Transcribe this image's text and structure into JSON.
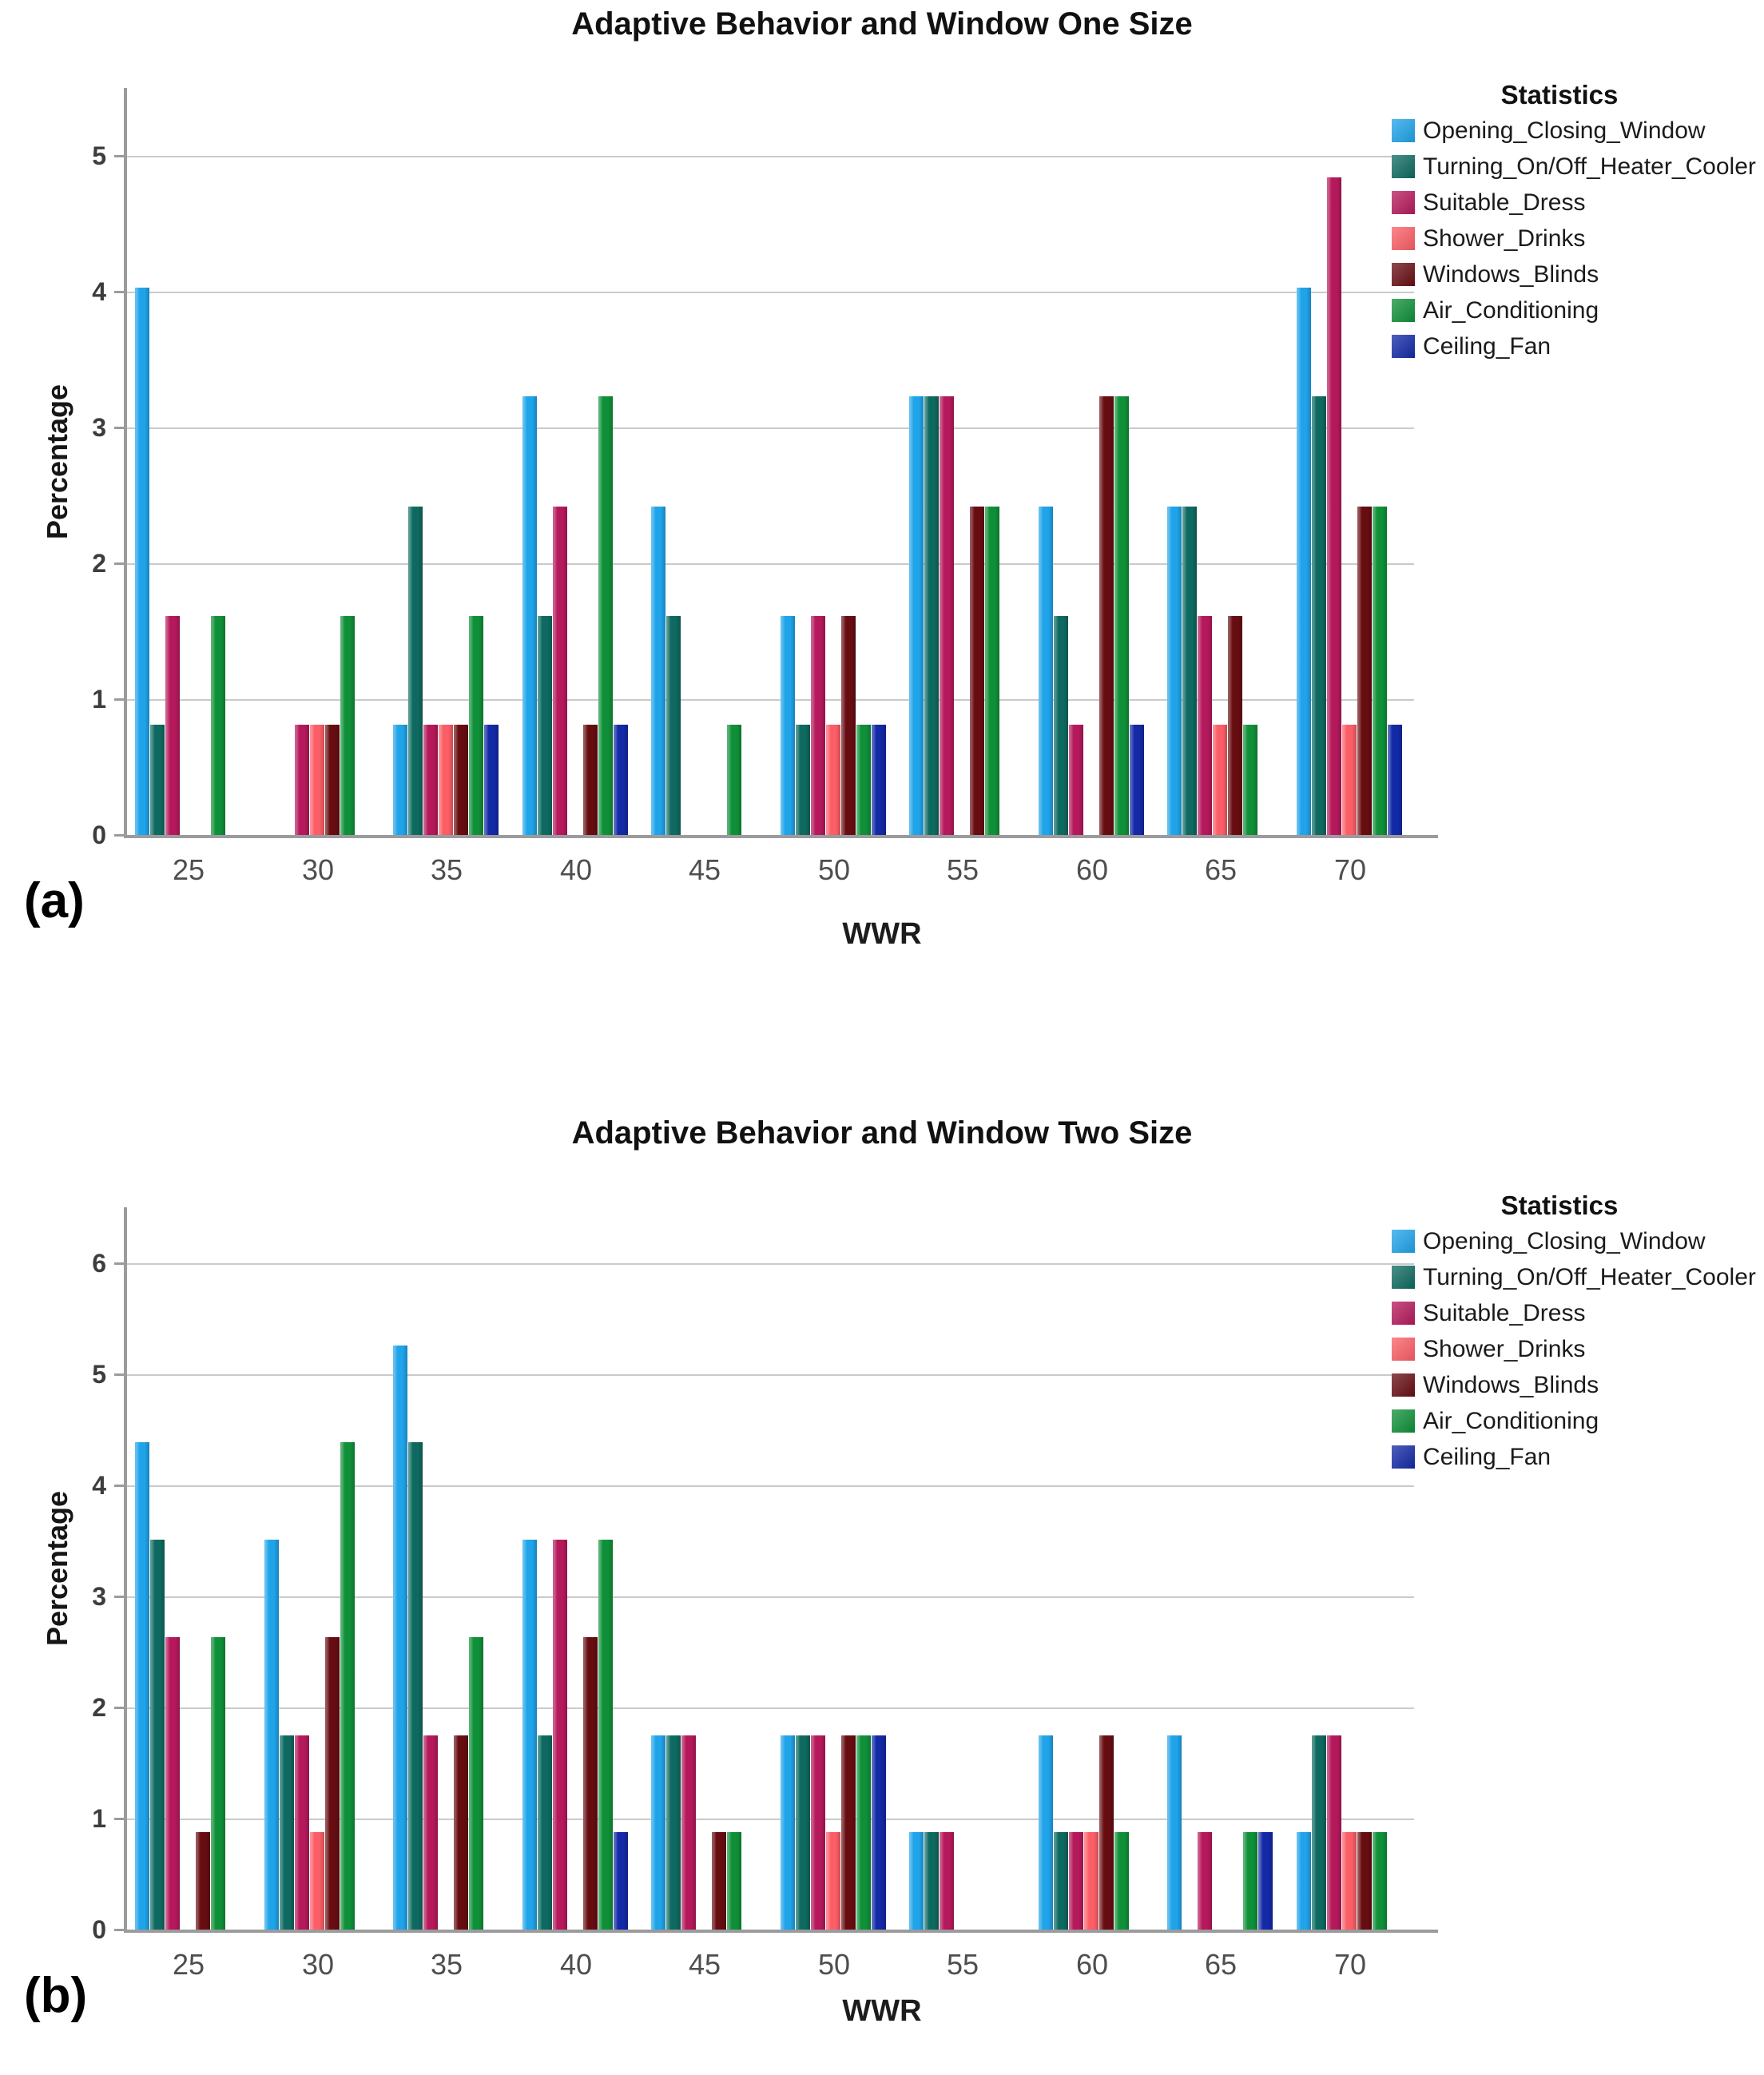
{
  "chart_data": [
    {
      "type": "bar",
      "panel_label": "(a)",
      "title": "Adaptive Behavior and Window One Size",
      "xlabel": "WWR",
      "ylabel": "Percentage",
      "legend_title": "Statistics",
      "legend_position": "top-right",
      "grid": "horizontal",
      "ylim": [
        0,
        5.5
      ],
      "yticks": [
        0,
        1,
        2,
        3,
        4,
        5
      ],
      "categories": [
        "25",
        "30",
        "35",
        "40",
        "45",
        "50",
        "55",
        "60",
        "65",
        "70"
      ],
      "series": [
        {
          "name": "Opening_Closing_Window",
          "color": "#1fa3e9",
          "values": [
            4.03,
            0,
            0.81,
            3.23,
            2.42,
            1.61,
            3.23,
            2.42,
            2.42,
            4.03
          ]
        },
        {
          "name": "Turning_On/Off_Heater_Cooler",
          "color": "#0e6a60",
          "values": [
            0.81,
            0,
            2.42,
            1.61,
            1.61,
            0.81,
            3.23,
            1.61,
            2.42,
            3.23
          ]
        },
        {
          "name": "Suitable_Dress",
          "color": "#b5195b",
          "values": [
            1.61,
            0.81,
            0.81,
            2.42,
            0,
            1.61,
            3.23,
            0.81,
            1.61,
            4.84
          ]
        },
        {
          "name": "Shower_Drinks",
          "color": "#fb5e66",
          "values": [
            0,
            0.81,
            0.81,
            0,
            0,
            0.81,
            0,
            0,
            0.81,
            0.81
          ]
        },
        {
          "name": "Windows_Blinds",
          "color": "#670d12",
          "values": [
            0,
            0.81,
            0.81,
            0.81,
            0,
            1.61,
            2.42,
            3.23,
            1.61,
            2.42
          ]
        },
        {
          "name": "Air_Conditioning",
          "color": "#0f9038",
          "values": [
            1.61,
            1.61,
            1.61,
            3.23,
            0.81,
            0.81,
            2.42,
            3.23,
            0.81,
            2.42
          ]
        },
        {
          "name": "Ceiling_Fan",
          "color": "#1329a6",
          "values": [
            0,
            0,
            0.81,
            0.81,
            0,
            0.81,
            0,
            0.81,
            0,
            0.81
          ]
        }
      ]
    },
    {
      "type": "bar",
      "panel_label": "(b)",
      "title": "Adaptive Behavior and Window Two Size",
      "xlabel": "WWR",
      "ylabel": "Percentage",
      "legend_title": "Statistics",
      "legend_position": "top-right",
      "grid": "horizontal",
      "ylim": [
        0,
        6.5
      ],
      "yticks": [
        0,
        1,
        2,
        3,
        4,
        5,
        6
      ],
      "categories": [
        "25",
        "30",
        "35",
        "40",
        "45",
        "50",
        "55",
        "60",
        "65",
        "70"
      ],
      "series": [
        {
          "name": "Opening_Closing_Window",
          "color": "#1fa3e9",
          "values": [
            4.39,
            3.51,
            5.26,
            3.51,
            1.75,
            1.75,
            0.88,
            1.75,
            1.75,
            0.88
          ]
        },
        {
          "name": "Turning_On/Off_Heater_Cooler",
          "color": "#0e6a60",
          "values": [
            3.51,
            1.75,
            4.39,
            1.75,
            1.75,
            1.75,
            0.88,
            0.88,
            0,
            1.75
          ]
        },
        {
          "name": "Suitable_Dress",
          "color": "#b5195b",
          "values": [
            2.63,
            1.75,
            1.75,
            3.51,
            1.75,
            1.75,
            0.88,
            0.88,
            0.88,
            1.75
          ]
        },
        {
          "name": "Shower_Drinks",
          "color": "#fb5e66",
          "values": [
            0,
            0.88,
            0,
            0,
            0,
            0.88,
            0,
            0.88,
            0,
            0.88
          ]
        },
        {
          "name": "Windows_Blinds",
          "color": "#670d12",
          "values": [
            0.88,
            2.63,
            1.75,
            2.63,
            0.88,
            1.75,
            0,
            1.75,
            0,
            0.88
          ]
        },
        {
          "name": "Air_Conditioning",
          "color": "#0f9038",
          "values": [
            2.63,
            4.39,
            2.63,
            3.51,
            0.88,
            1.75,
            0,
            0.88,
            0.88,
            0.88
          ]
        },
        {
          "name": "Ceiling_Fan",
          "color": "#1329a6",
          "values": [
            0,
            0,
            0,
            0.88,
            0,
            1.75,
            0,
            0,
            0.88,
            0
          ]
        }
      ]
    }
  ]
}
